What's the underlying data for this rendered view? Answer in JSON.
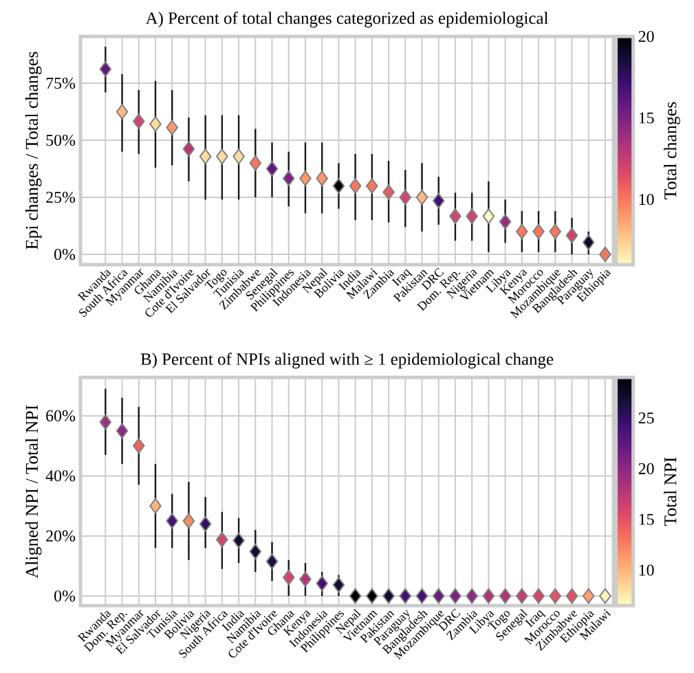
{
  "chart_data": [
    {
      "type": "scatter",
      "title": "A) Percent of total changes categorized as epidemiological",
      "ylabel": "Epi changes / Total changes",
      "clabel": "Total changes",
      "categories": [
        "Rwanda",
        "South Africa",
        "Myanmar",
        "Ghana",
        "Namibia",
        "Cote d'Ivoire",
        "El Salvador",
        "Togo",
        "Tunisia",
        "Zimbabwe",
        "Senegal",
        "Philippines",
        "Indonesia",
        "Nepal",
        "Bolivia",
        "India",
        "Malawi",
        "Zambia",
        "Iraq",
        "Pakistan",
        "DRC",
        "Dom. Rep.",
        "Nigeria",
        "Vietnam",
        "Libya",
        "Kenya",
        "Morocco",
        "Mozambique",
        "Bangladesh",
        "Paraguay",
        "Ethiopia"
      ],
      "values": [
        81.2,
        62.5,
        58.3,
        57.1,
        55.6,
        46.2,
        42.9,
        42.9,
        42.9,
        40.0,
        37.5,
        33.3,
        33.3,
        33.3,
        30.0,
        30.0,
        30.0,
        27.3,
        25.0,
        25.0,
        23.5,
        16.7,
        16.7,
        16.7,
        14.3,
        10.0,
        10.0,
        10.0,
        8.3,
        5.3,
        0
      ],
      "errors": [
        [
          71,
          91
        ],
        [
          45,
          79
        ],
        [
          44,
          72
        ],
        [
          38,
          76
        ],
        [
          39,
          72
        ],
        [
          32,
          60
        ],
        [
          24,
          61
        ],
        [
          24,
          61
        ],
        [
          24,
          61
        ],
        [
          25,
          55
        ],
        [
          25,
          49
        ],
        [
          21,
          45
        ],
        [
          18,
          49
        ],
        [
          18,
          49
        ],
        [
          20,
          40
        ],
        [
          15,
          44
        ],
        [
          15,
          44
        ],
        [
          14,
          41
        ],
        [
          12,
          37
        ],
        [
          10,
          40
        ],
        [
          13,
          34
        ],
        [
          6,
          27
        ],
        [
          6,
          27
        ],
        [
          1,
          32
        ],
        [
          5,
          24
        ],
        [
          1,
          19
        ],
        [
          1,
          19
        ],
        [
          1,
          19
        ],
        [
          0,
          16
        ],
        [
          0,
          10
        ],
        null
      ],
      "cvalues": [
        16,
        8,
        12,
        7,
        9,
        13,
        7,
        7,
        7,
        10,
        16,
        15,
        9,
        9,
        20,
        10,
        10,
        11,
        12,
        8,
        17,
        12,
        12,
        6,
        14,
        10,
        10,
        10,
        12,
        19,
        10
      ],
      "clim": [
        6,
        20
      ],
      "cticks": [
        10,
        15,
        20
      ],
      "ylim": [
        -4.5,
        95.5
      ],
      "yticks": [
        {
          "value": 0,
          "label": "0%"
        },
        {
          "value": 25,
          "label": "25%"
        },
        {
          "value": 50,
          "label": "50%"
        },
        {
          "value": 75,
          "label": "75%"
        }
      ],
      "grid": true,
      "marker": "diamond"
    },
    {
      "type": "scatter",
      "title": "B) Percent of NPIs aligned with ≥ 1 epidemiological change",
      "ylabel": "Aligned NPI / Total NPI",
      "clabel": "Total NPI",
      "categories": [
        "Rwanda",
        "Dom. Rep.",
        "Myanmar",
        "El Salvador",
        "Tunisia",
        "Bolivia",
        "Nigeria",
        "South Africa",
        "India",
        "Namibia",
        "Cote d'Ivoire",
        "Ghana",
        "Kenya",
        "Indonesia",
        "Philippines",
        "Nepal",
        "Vietnam",
        "Pakistan",
        "Paraguay",
        "Bangladesh",
        "Mozambique",
        "DRC",
        "Zambia",
        "Libya",
        "Togo",
        "Senegal",
        "Iraq",
        "Morocco",
        "Zimbabwe",
        "Ethiopia",
        "Malawi"
      ],
      "values": [
        57.9,
        55.0,
        50.0,
        30.0,
        25.0,
        25.0,
        24.0,
        18.8,
        18.5,
        14.8,
        11.5,
        6.2,
        5.6,
        4.2,
        3.7,
        0,
        0,
        0,
        0,
        0,
        0,
        0,
        0,
        0,
        0,
        0,
        0,
        0,
        0,
        0,
        0
      ],
      "errors": [
        [
          47,
          69
        ],
        [
          44,
          66
        ],
        [
          37,
          63
        ],
        [
          16,
          44
        ],
        [
          16,
          34
        ],
        [
          12,
          38
        ],
        [
          16,
          33
        ],
        [
          9,
          28
        ],
        [
          11,
          26
        ],
        [
          8,
          22
        ],
        [
          5,
          18
        ],
        [
          0,
          12
        ],
        [
          0,
          11
        ],
        [
          0,
          8
        ],
        [
          0,
          7
        ],
        null,
        null,
        null,
        null,
        null,
        null,
        null,
        null,
        null,
        null,
        null,
        null,
        null,
        null,
        null,
        null
      ],
      "cvalues": [
        19,
        20,
        14,
        10,
        24,
        12,
        25,
        16,
        27,
        27,
        26,
        16,
        18,
        24,
        27,
        29,
        29,
        27,
        24,
        24,
        22,
        21,
        20,
        18,
        18,
        17,
        16,
        15,
        15,
        11,
        7
      ],
      "clim": [
        6.5,
        29
      ],
      "cticks": [
        10,
        15,
        20,
        25
      ],
      "ylim": [
        -3.2,
        72.8
      ],
      "yticks": [
        {
          "value": 0,
          "label": "0%"
        },
        {
          "value": 20,
          "label": "20%"
        },
        {
          "value": 40,
          "label": "40%"
        },
        {
          "value": 60,
          "label": "60%"
        }
      ],
      "grid": true,
      "marker": "diamond"
    }
  ]
}
